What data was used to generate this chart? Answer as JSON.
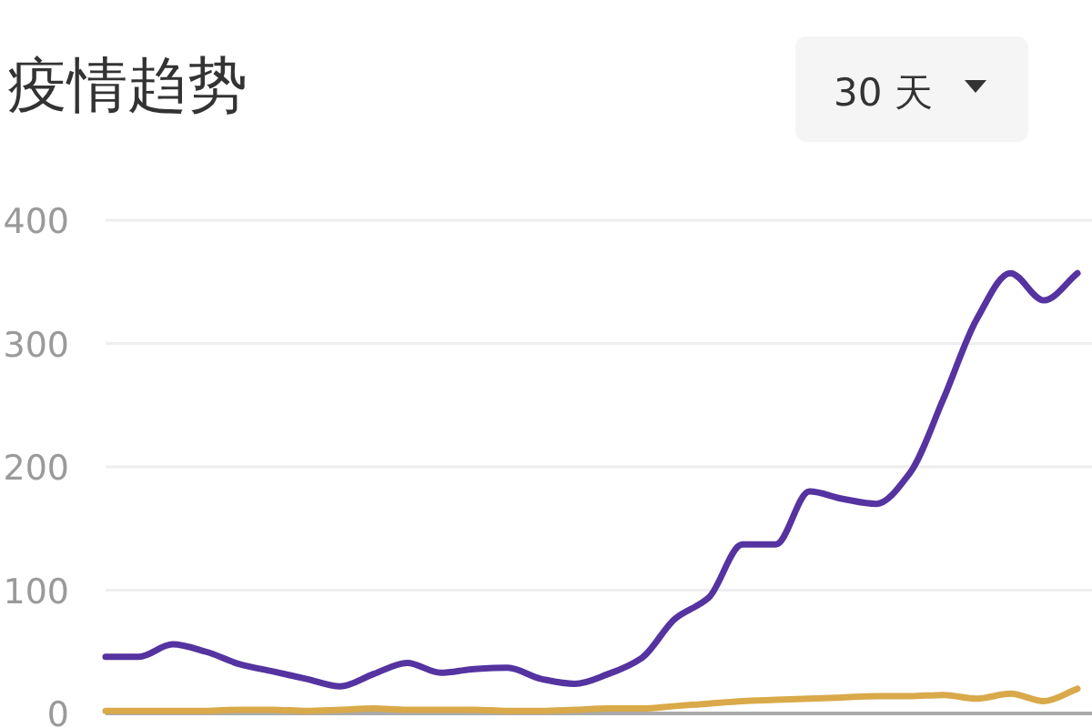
{
  "chart_data": {
    "type": "line",
    "title": "疫情趋势",
    "annotations": [
      "30 天"
    ],
    "categories": [
      null,
      null,
      null,
      null,
      null,
      null,
      null,
      null,
      null,
      null,
      null,
      null,
      null,
      null,
      null,
      null,
      null,
      null,
      null,
      null,
      null,
      null,
      null,
      null,
      null,
      null,
      null,
      null,
      null,
      null
    ],
    "series": [
      {
        "color": "#5533a0",
        "values": [
          46,
          46,
          56,
          50,
          40,
          34,
          28,
          22,
          32,
          41,
          33,
          36,
          37,
          28,
          24,
          32,
          45,
          77,
          94,
          137,
          137,
          180,
          174,
          170,
          195,
          255,
          320,
          357,
          335,
          357
        ]
      },
      {
        "color": "#d9a94a",
        "values": [
          2,
          2,
          2,
          2,
          3,
          3,
          2,
          3,
          4,
          3,
          3,
          3,
          2,
          2,
          3,
          4,
          4,
          6,
          8,
          10,
          11,
          12,
          13,
          14,
          14,
          15,
          12,
          16,
          10,
          20
        ]
      }
    ],
    "ylim": [
      0,
      400
    ],
    "yticks": [
      0,
      100,
      200,
      300,
      400
    ],
    "grid": "y",
    "tick_labels": "y"
  }
}
